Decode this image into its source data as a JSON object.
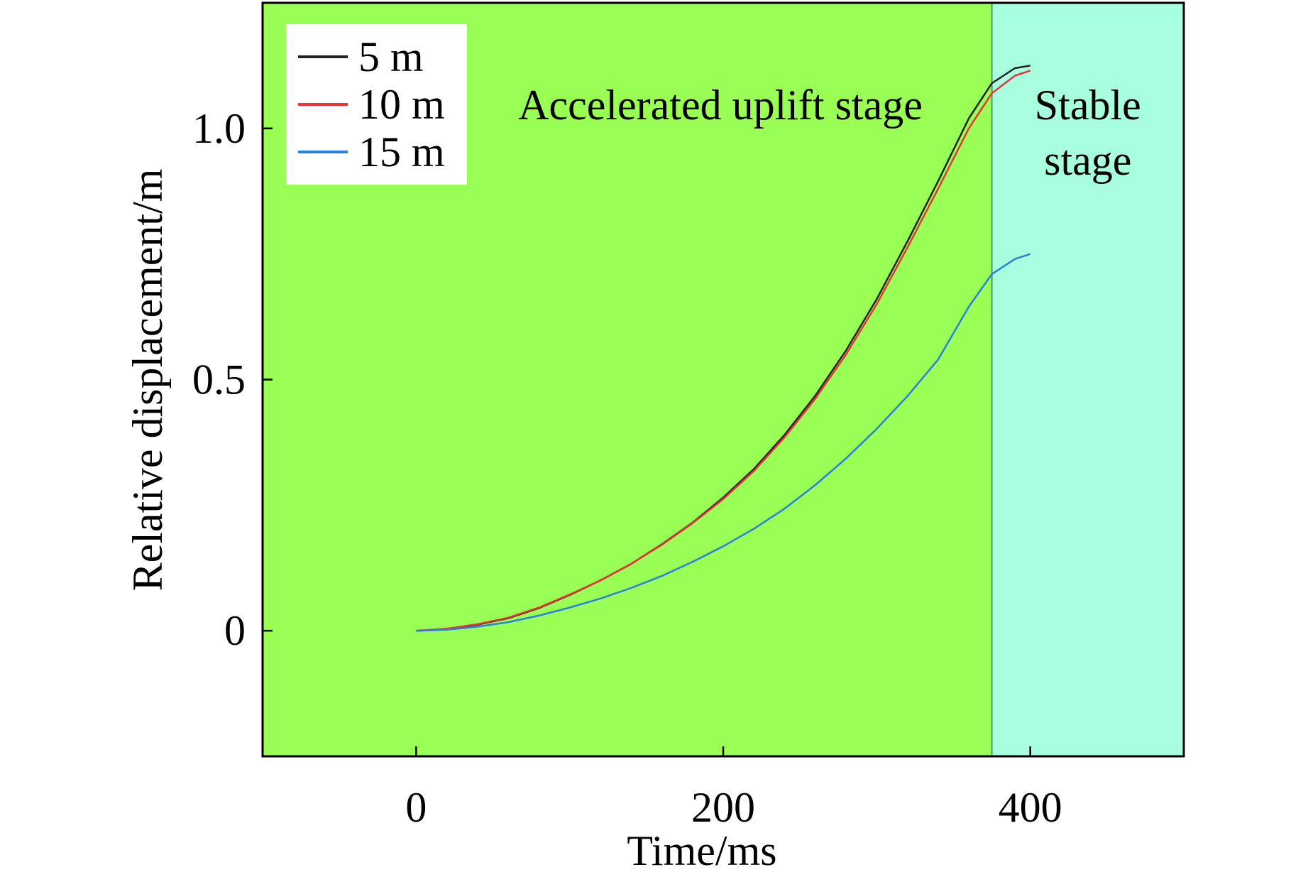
{
  "chart_data": {
    "type": "line",
    "title": "",
    "xlabel": "Time/ms",
    "ylabel": "Relative displacement/m",
    "xlim": [
      -100,
      500
    ],
    "ylim": [
      -0.25,
      1.25
    ],
    "xticks": [
      0,
      200,
      400
    ],
    "xtick_labels": [
      "0",
      "200",
      "400"
    ],
    "yticks": [
      0,
      0.5,
      1.0
    ],
    "ytick_labels": [
      "0",
      "0.5",
      "1.0"
    ],
    "grid": false,
    "legend_position": "top-left",
    "regions": [
      {
        "label_lines": [
          "Accelerated uplift stage"
        ],
        "x_range": [
          -100,
          375
        ],
        "color": "#99ff55"
      },
      {
        "label_lines": [
          "Stable",
          "stage"
        ],
        "x_range": [
          375,
          500
        ],
        "color": "#a8ffe0"
      }
    ],
    "series": [
      {
        "name": "5 m",
        "color": "#222222",
        "x": [
          0,
          20,
          40,
          60,
          80,
          100,
          120,
          140,
          160,
          180,
          200,
          220,
          240,
          260,
          280,
          300,
          320,
          340,
          360,
          375,
          390,
          400
        ],
        "y": [
          0,
          0.003,
          0.012,
          0.025,
          0.045,
          0.071,
          0.1,
          0.133,
          0.172,
          0.215,
          0.265,
          0.322,
          0.39,
          0.468,
          0.558,
          0.66,
          0.775,
          0.895,
          1.02,
          1.09,
          1.12,
          1.125
        ]
      },
      {
        "name": "10 m",
        "color": "#e8333d",
        "x": [
          0,
          20,
          40,
          60,
          80,
          100,
          120,
          140,
          160,
          180,
          200,
          220,
          240,
          260,
          280,
          300,
          320,
          340,
          360,
          375,
          390,
          400
        ],
        "y": [
          0,
          0.004,
          0.013,
          0.026,
          0.046,
          0.072,
          0.1,
          0.133,
          0.171,
          0.214,
          0.262,
          0.318,
          0.385,
          0.462,
          0.55,
          0.65,
          0.763,
          0.88,
          1.0,
          1.07,
          1.105,
          1.115
        ]
      },
      {
        "name": "15 m",
        "color": "#2a7fe0",
        "x": [
          0,
          20,
          40,
          60,
          80,
          100,
          120,
          140,
          160,
          180,
          200,
          220,
          240,
          260,
          280,
          300,
          320,
          340,
          360,
          375,
          390,
          400
        ],
        "y": [
          0,
          0.002,
          0.008,
          0.017,
          0.03,
          0.046,
          0.064,
          0.085,
          0.109,
          0.137,
          0.168,
          0.203,
          0.243,
          0.29,
          0.343,
          0.402,
          0.467,
          0.54,
          0.645,
          0.71,
          0.74,
          0.75
        ]
      }
    ]
  }
}
